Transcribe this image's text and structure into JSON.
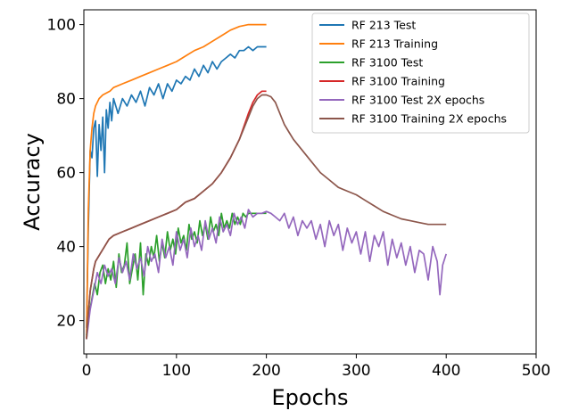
{
  "chart_data": {
    "type": "line",
    "title": "",
    "xlabel": "Epochs",
    "ylabel": "Accuracy",
    "xlim": [
      -3,
      500
    ],
    "ylim": [
      11,
      104
    ],
    "xticks": [
      0,
      100,
      200,
      300,
      400,
      500
    ],
    "yticks": [
      20,
      40,
      60,
      80,
      100
    ],
    "grid": false,
    "legend_position": "top-right",
    "series": [
      {
        "name": "RF 213 Test",
        "color": "#1f77b4",
        "x": [
          0,
          2,
          4,
          6,
          8,
          10,
          12,
          14,
          16,
          18,
          20,
          22,
          24,
          26,
          28,
          30,
          35,
          40,
          45,
          50,
          55,
          60,
          65,
          70,
          75,
          80,
          85,
          90,
          95,
          100,
          105,
          110,
          115,
          120,
          125,
          130,
          135,
          140,
          145,
          150,
          155,
          160,
          165,
          170,
          175,
          180,
          185,
          190,
          195,
          200
        ],
        "y": [
          18,
          45,
          66,
          64,
          72,
          74,
          59,
          73,
          66,
          75,
          60,
          77,
          72,
          79,
          74,
          80,
          76,
          80,
          78,
          81,
          79,
          82,
          78,
          83,
          81,
          84,
          80,
          84,
          82,
          85,
          84,
          86,
          85,
          88,
          86,
          89,
          87,
          90,
          88,
          90,
          91,
          92,
          91,
          93,
          93,
          94,
          93,
          94,
          94,
          94
        ]
      },
      {
        "name": "RF 213 Training",
        "color": "#ff7f0e",
        "x": [
          0,
          2,
          4,
          6,
          8,
          10,
          14,
          18,
          22,
          26,
          30,
          40,
          50,
          60,
          70,
          80,
          90,
          100,
          110,
          120,
          130,
          140,
          150,
          160,
          170,
          180,
          185,
          190,
          195,
          200
        ],
        "y": [
          15,
          50,
          66,
          72,
          76,
          78,
          80,
          81,
          81.5,
          82,
          83,
          84,
          85,
          86,
          87,
          88,
          89,
          90,
          91.5,
          93,
          94,
          95.5,
          97,
          98.5,
          99.5,
          100,
          100,
          100,
          100,
          100
        ]
      },
      {
        "name": "RF 3100 Test",
        "color": "#2ca02c",
        "x": [
          0,
          3,
          6,
          9,
          12,
          15,
          18,
          21,
          24,
          27,
          30,
          33,
          36,
          39,
          42,
          45,
          48,
          51,
          54,
          57,
          60,
          63,
          66,
          69,
          72,
          75,
          78,
          81,
          84,
          87,
          90,
          93,
          96,
          99,
          102,
          105,
          108,
          111,
          114,
          117,
          120,
          123,
          126,
          129,
          132,
          135,
          138,
          141,
          144,
          147,
          150,
          153,
          156,
          159,
          162,
          165,
          168,
          171,
          174,
          177,
          180,
          185,
          190,
          195,
          200
        ],
        "y": [
          16,
          22,
          26,
          30,
          27,
          33,
          35,
          30,
          34,
          31,
          36,
          29,
          38,
          33,
          35,
          41,
          30,
          34,
          38,
          31,
          41,
          27,
          38,
          35,
          40,
          37,
          43,
          36,
          41,
          37,
          44,
          39,
          42,
          38,
          45,
          41,
          43,
          39,
          46,
          42,
          44,
          41,
          47,
          43,
          46,
          42,
          48,
          44,
          46,
          43,
          49,
          45,
          47,
          45,
          49,
          46,
          48,
          46,
          49,
          48,
          49,
          49,
          49,
          49,
          49
        ]
      },
      {
        "name": "RF 3100 Training",
        "color": "#d62728",
        "x": [
          0,
          2,
          4,
          6,
          8,
          10,
          15,
          20,
          25,
          30,
          40,
          50,
          60,
          70,
          80,
          90,
          100,
          110,
          120,
          130,
          140,
          150,
          160,
          170,
          180,
          185,
          190,
          195,
          200
        ],
        "y": [
          15,
          22,
          28,
          31,
          34,
          36,
          38,
          40,
          42,
          43,
          44,
          45,
          46,
          47,
          48,
          49,
          50,
          52,
          53,
          55,
          57,
          60,
          64,
          69,
          76,
          79,
          81,
          82,
          82
        ]
      },
      {
        "name": "RF 3100 Test 2X epochs",
        "color": "#9467bd",
        "x": [
          0,
          4,
          8,
          12,
          16,
          20,
          24,
          28,
          32,
          36,
          40,
          44,
          48,
          52,
          56,
          60,
          64,
          68,
          72,
          76,
          80,
          84,
          88,
          92,
          96,
          100,
          104,
          108,
          112,
          116,
          120,
          124,
          128,
          132,
          136,
          140,
          144,
          148,
          152,
          156,
          160,
          164,
          168,
          172,
          176,
          180,
          185,
          190,
          195,
          200,
          205,
          210,
          215,
          220,
          225,
          230,
          235,
          240,
          245,
          250,
          255,
          260,
          265,
          270,
          275,
          280,
          285,
          290,
          295,
          300,
          305,
          310,
          315,
          320,
          325,
          330,
          335,
          340,
          345,
          350,
          355,
          360,
          365,
          370,
          375,
          380,
          385,
          390,
          393,
          396,
          400
        ],
        "y": [
          15,
          23,
          28,
          33,
          30,
          35,
          32,
          34,
          30,
          37,
          33,
          36,
          31,
          38,
          34,
          37,
          32,
          40,
          36,
          38,
          33,
          42,
          37,
          40,
          35,
          44,
          39,
          42,
          37,
          45,
          40,
          43,
          39,
          47,
          42,
          45,
          41,
          48,
          44,
          46,
          43,
          49,
          46,
          48,
          45,
          50,
          48,
          49,
          49,
          49.5,
          49,
          48,
          47,
          49,
          45,
          48,
          43,
          47,
          45,
          47,
          42,
          46,
          40,
          47,
          43,
          46,
          39,
          45,
          41,
          44,
          38,
          44,
          36,
          43,
          40,
          44,
          35,
          42,
          37,
          41,
          35,
          40,
          33,
          39,
          38,
          31,
          40,
          36,
          27,
          35,
          38
        ]
      },
      {
        "name": "RF 3100 Training 2X epochs",
        "color": "#8c564b",
        "x": [
          0,
          2,
          4,
          6,
          8,
          10,
          15,
          20,
          25,
          30,
          40,
          50,
          60,
          70,
          80,
          90,
          100,
          110,
          120,
          130,
          140,
          150,
          160,
          170,
          180,
          185,
          190,
          195,
          200,
          205,
          210,
          215,
          220,
          225,
          230,
          240,
          250,
          260,
          270,
          280,
          290,
          300,
          310,
          320,
          330,
          340,
          350,
          360,
          370,
          380,
          390,
          400
        ],
        "y": [
          15,
          22,
          28,
          31,
          34,
          36,
          38,
          40,
          42,
          43,
          44,
          45,
          46,
          47,
          48,
          49,
          50,
          52,
          53,
          55,
          57,
          60,
          64,
          69,
          75,
          78,
          80,
          81,
          81,
          80.5,
          79,
          76,
          73,
          71,
          69,
          66,
          63,
          60,
          58,
          56,
          55,
          54,
          52.5,
          51,
          49.5,
          48.5,
          47.5,
          47,
          46.5,
          46,
          46,
          46
        ]
      }
    ]
  }
}
